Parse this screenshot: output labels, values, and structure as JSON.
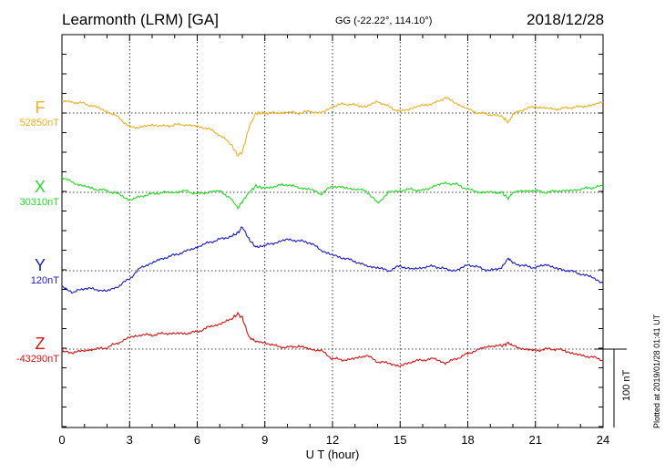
{
  "header": {
    "station": "Learmonth (LRM)  [GA]",
    "coords": "GG (-22.22°, 114.10°)",
    "date": "2018/12/28"
  },
  "plotted_note": "Plotted at 2019/01/28 01:41  UT",
  "scale_label": "100 nT",
  "chart_data": {
    "type": "line",
    "xlabel": "U T (hour)",
    "xlim": [
      0,
      24
    ],
    "xticks": [
      0,
      3,
      6,
      9,
      12,
      15,
      18,
      21,
      24
    ],
    "grid": true,
    "scale_bar_nT": 100,
    "series": [
      {
        "name": "F",
        "baseline_label": "52850nT",
        "baseline": 52850,
        "color": "#f0b020",
        "x": [
          0,
          0.5,
          1,
          1.5,
          2,
          2.5,
          3,
          3.5,
          4,
          4.5,
          5,
          5.5,
          6,
          6.5,
          7,
          7.5,
          7.8,
          8,
          8.3,
          8.6,
          9,
          9.5,
          10,
          10.5,
          11,
          11.5,
          12,
          12.5,
          13,
          13.5,
          14,
          14.5,
          15,
          15.5,
          16,
          16.5,
          17,
          17.5,
          18,
          18.5,
          19,
          19.5,
          19.8,
          20,
          20.5,
          21,
          21.5,
          22,
          22.5,
          23,
          23.5,
          24
        ],
        "y": [
          52865,
          52864,
          52862,
          52858,
          52852,
          52845,
          52832,
          52832,
          52835,
          52833,
          52835,
          52835,
          52833,
          52830,
          52822,
          52810,
          52796,
          52800,
          52832,
          52850,
          52850,
          52850,
          52851,
          52850,
          52852,
          52850,
          52858,
          52862,
          52860,
          52858,
          52865,
          52858,
          52852,
          52856,
          52860,
          52862,
          52870,
          52862,
          52855,
          52850,
          52848,
          52846,
          52838,
          52848,
          52855,
          52858,
          52856,
          52855,
          52857,
          52858,
          52860,
          52864
        ]
      },
      {
        "name": "X",
        "baseline_label": "30310nT",
        "baseline": 30310,
        "color": "#22dd22",
        "x": [
          0,
          0.5,
          1,
          1.5,
          2,
          2.5,
          3,
          3.5,
          4,
          4.5,
          5,
          5.5,
          6,
          6.5,
          7,
          7.5,
          7.8,
          8,
          8.3,
          8.6,
          9,
          9.5,
          10,
          10.5,
          11,
          11.5,
          12,
          12.5,
          13,
          13.5,
          14,
          14.5,
          15,
          15.5,
          16,
          16.5,
          17,
          17.5,
          18,
          18.5,
          19,
          19.5,
          19.8,
          20,
          20.5,
          21,
          21.5,
          22,
          22.5,
          23,
          23.5,
          24
        ],
        "y": [
          30330,
          30322,
          30318,
          30314,
          30312,
          30308,
          30300,
          30305,
          30308,
          30310,
          30310,
          30312,
          30308,
          30310,
          30312,
          30302,
          30290,
          30298,
          30310,
          30318,
          30315,
          30318,
          30320,
          30316,
          30314,
          30308,
          30318,
          30316,
          30314,
          30312,
          30296,
          30310,
          30312,
          30314,
          30312,
          30318,
          30322,
          30320,
          30314,
          30310,
          30310,
          30310,
          30302,
          30310,
          30312,
          30312,
          30310,
          30312,
          30312,
          30314,
          30316,
          30318
        ]
      },
      {
        "name": "Y",
        "baseline_label": "120nT",
        "baseline": 120,
        "color": "#1a1acc",
        "x": [
          0,
          0.5,
          1,
          1.5,
          2,
          2.5,
          3,
          3.5,
          4,
          4.5,
          5,
          5.5,
          6,
          6.5,
          7,
          7.5,
          7.8,
          8,
          8.3,
          8.6,
          9,
          9.5,
          10,
          10.5,
          11,
          11.5,
          12,
          12.5,
          13,
          13.5,
          14,
          14.5,
          15,
          15.5,
          16,
          16.5,
          17,
          17.5,
          18,
          18.5,
          19,
          19.5,
          19.8,
          20,
          20.5,
          21,
          21.5,
          22,
          22.5,
          23,
          23.5,
          24
        ],
        "y": [
          100,
          92,
          98,
          96,
          94,
          100,
          110,
          124,
          130,
          136,
          140,
          145,
          150,
          156,
          160,
          164,
          168,
          176,
          160,
          150,
          152,
          156,
          160,
          158,
          156,
          146,
          140,
          136,
          132,
          126,
          124,
          120,
          126,
          122,
          124,
          126,
          122,
          120,
          128,
          124,
          120,
          124,
          136,
          130,
          126,
          124,
          128,
          122,
          120,
          116,
          112,
          104
        ]
      },
      {
        "name": "Z",
        "baseline_label": "-43290nT",
        "baseline": -43290,
        "color": "#dd1111",
        "x": [
          0,
          0.5,
          1,
          1.5,
          2,
          2.5,
          3,
          3.5,
          4,
          4.5,
          5,
          5.5,
          6,
          6.5,
          7,
          7.5,
          7.8,
          8,
          8.3,
          8.6,
          9,
          9.5,
          10,
          10.5,
          11,
          11.5,
          12,
          12.5,
          13,
          13.5,
          14,
          14.5,
          15,
          15.5,
          16,
          16.5,
          17,
          17.5,
          18,
          18.5,
          19,
          19.5,
          19.8,
          20,
          20.5,
          21,
          21.5,
          22,
          22.5,
          23,
          23.5,
          24
        ],
        "y": [
          -43294,
          -43294,
          -43292,
          -43290,
          -43288,
          -43282,
          -43275,
          -43272,
          -43272,
          -43270,
          -43270,
          -43270,
          -43268,
          -43262,
          -43258,
          -43252,
          -43245,
          -43250,
          -43275,
          -43280,
          -43282,
          -43286,
          -43288,
          -43286,
          -43290,
          -43292,
          -43302,
          -43304,
          -43302,
          -43298,
          -43306,
          -43308,
          -43312,
          -43306,
          -43304,
          -43302,
          -43308,
          -43302,
          -43296,
          -43290,
          -43286,
          -43286,
          -43282,
          -43286,
          -43290,
          -43292,
          -43290,
          -43290,
          -43294,
          -43298,
          -43300,
          -43304
        ]
      }
    ]
  }
}
